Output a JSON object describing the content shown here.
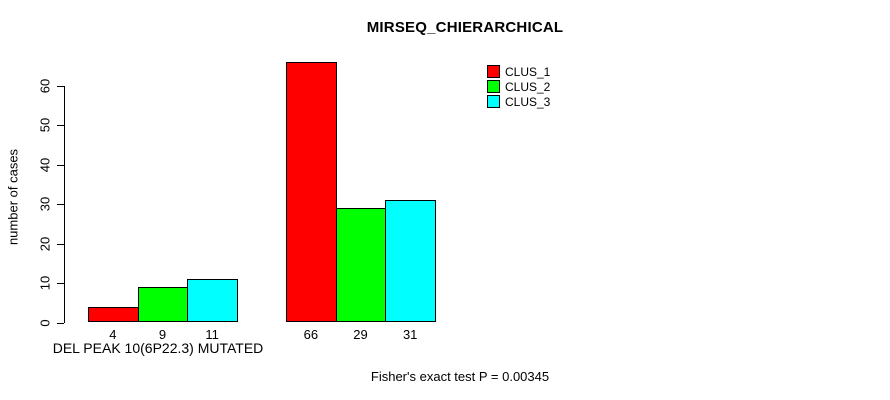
{
  "chart_data": {
    "type": "bar",
    "title": "MIRSEQ_CHIERARCHICAL",
    "ylabel": "number of cases",
    "xlabel": "DEL PEAK 10(6P22.3) MUTATED",
    "annotation": "Fisher's exact test P = 0.00345",
    "y_ticks": [
      0,
      10,
      20,
      30,
      40,
      50,
      60
    ],
    "ylim": [
      0,
      66
    ],
    "grid": false,
    "background": "#ffffff",
    "axis_color": "#000000",
    "series": [
      {
        "name": "CLUS_1",
        "color": "#ff0000",
        "values": [
          4,
          66
        ]
      },
      {
        "name": "CLUS_2",
        "color": "#00ff00",
        "values": [
          9,
          29
        ]
      },
      {
        "name": "CLUS_3",
        "color": "#00ffff",
        "values": [
          11,
          31
        ]
      }
    ],
    "bar_value_labels": [
      [
        "4",
        "9",
        "11"
      ],
      [
        "66",
        "29",
        "31"
      ]
    ],
    "legend": {
      "position": "top-right",
      "entries": [
        {
          "label": "CLUS_1",
          "color": "#ff0000"
        },
        {
          "label": "CLUS_2",
          "color": "#00ff00"
        },
        {
          "label": "CLUS_3",
          "color": "#00ffff"
        }
      ]
    }
  }
}
